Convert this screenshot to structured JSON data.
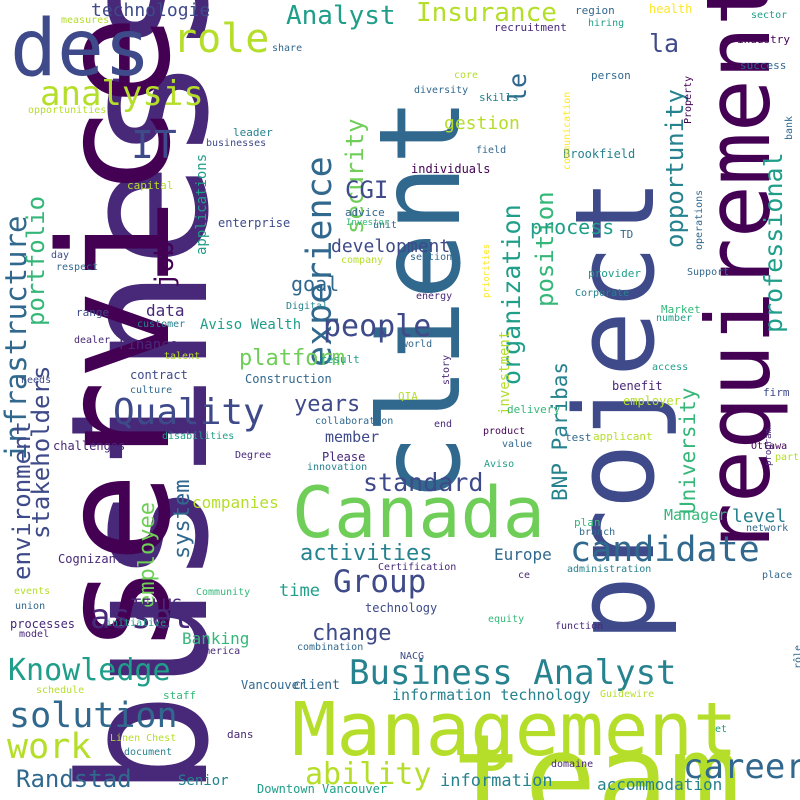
{
  "palette": {
    "c0": "#440154",
    "c1": "#482878",
    "c2": "#3e4a89",
    "c3": "#31688e",
    "c4": "#26828e",
    "c5": "#1f9e89",
    "c6": "#35b779",
    "c7": "#6ece58",
    "c8": "#b5de2b",
    "c9": "#fde725"
  },
  "words": [
    {
      "text": "business",
      "color": "c1"
    },
    {
      "text": "service",
      "color": "c0"
    },
    {
      "text": "team",
      "color": "c8"
    },
    {
      "text": "client",
      "color": "c3"
    },
    {
      "text": "project",
      "color": "c2"
    },
    {
      "text": "requirement",
      "color": "c0"
    },
    {
      "text": "des",
      "color": "c2"
    },
    {
      "text": "Management",
      "color": "c8"
    },
    {
      "text": "Canada",
      "color": "c7"
    },
    {
      "text": "experience",
      "color": "c3"
    },
    {
      "text": "infrastructure",
      "color": "c3"
    },
    {
      "text": "role",
      "color": "c8"
    },
    {
      "text": "analysis",
      "color": "c8"
    },
    {
      "text": "IT",
      "color": "c2"
    },
    {
      "text": "Quality",
      "color": "c2"
    },
    {
      "text": "candidate",
      "color": "c3"
    },
    {
      "text": "Business Analyst",
      "color": "c4"
    },
    {
      "text": "solution",
      "color": "c3"
    },
    {
      "text": "work",
      "color": "c8"
    },
    {
      "text": "people",
      "color": "c2"
    },
    {
      "text": "Group",
      "color": "c2"
    },
    {
      "text": "asset",
      "color": "c1"
    },
    {
      "text": "career",
      "color": "c3"
    },
    {
      "text": "Knowledge",
      "color": "c5"
    },
    {
      "text": "ability",
      "color": "c8"
    },
    {
      "text": "Randstad",
      "color": "c3"
    },
    {
      "text": "professional",
      "color": "c5"
    },
    {
      "text": "organization",
      "color": "c5"
    },
    {
      "text": "position",
      "color": "c6"
    },
    {
      "text": "security",
      "color": "c7"
    },
    {
      "text": "portfolio",
      "color": "c6"
    },
    {
      "text": "stakeholders",
      "color": "c2"
    },
    {
      "text": "environment",
      "color": "c2"
    },
    {
      "text": "Analyst",
      "color": "c5"
    },
    {
      "text": "Insurance",
      "color": "c8"
    },
    {
      "text": "la",
      "color": "c2"
    },
    {
      "text": "le",
      "color": "c3"
    },
    {
      "text": "opportunity",
      "color": "c4"
    },
    {
      "text": "University",
      "color": "c6"
    },
    {
      "text": "employee",
      "color": "c7"
    },
    {
      "text": "system",
      "color": "c3"
    },
    {
      "text": "standard",
      "color": "c2"
    },
    {
      "text": "activities",
      "color": "c4"
    },
    {
      "text": "change",
      "color": "c2"
    },
    {
      "text": "platform",
      "color": "c7"
    },
    {
      "text": "years",
      "color": "c2"
    },
    {
      "text": "BNP Paribas",
      "color": "c4"
    },
    {
      "text": "job",
      "color": "c0"
    },
    {
      "text": "CGI",
      "color": "c2"
    },
    {
      "text": "development",
      "color": "c2"
    },
    {
      "text": "goal",
      "color": "c3"
    },
    {
      "text": "process",
      "color": "c5"
    },
    {
      "text": "gestion",
      "color": "c8"
    },
    {
      "text": "technologie",
      "color": "c2"
    },
    {
      "text": "level",
      "color": "c4"
    },
    {
      "text": "Manager",
      "color": "c6"
    },
    {
      "text": "information technology",
      "color": "c4"
    },
    {
      "text": "information",
      "color": "c4"
    },
    {
      "text": "accommodation",
      "color": "c4"
    },
    {
      "text": "Europe",
      "color": "c3"
    },
    {
      "text": "TELUS",
      "color": "c1"
    },
    {
      "text": "time",
      "color": "c5"
    },
    {
      "text": "Banking",
      "color": "c6"
    },
    {
      "text": "companies",
      "color": "c8"
    },
    {
      "text": "data",
      "color": "c1"
    },
    {
      "text": "member",
      "color": "c2"
    },
    {
      "text": "Senior",
      "color": "c4"
    },
    {
      "text": "applications",
      "color": "c5"
    },
    {
      "text": "investment",
      "color": "c8"
    },
    {
      "text": "Aviso Wealth",
      "color": "c5"
    },
    {
      "text": "Finance",
      "color": "c1"
    },
    {
      "text": "Construction",
      "color": "c3"
    },
    {
      "text": "Please",
      "color": "c1"
    },
    {
      "text": "Vancouver",
      "color": "c3"
    },
    {
      "text": "client",
      "color": "c3"
    },
    {
      "text": "Downtown Vancouver",
      "color": "c5"
    },
    {
      "text": "Cognizant",
      "color": "c1"
    },
    {
      "text": "challenges",
      "color": "c1"
    },
    {
      "text": "contract",
      "color": "c2"
    },
    {
      "text": "range",
      "color": "c2"
    },
    {
      "text": "enterprise",
      "color": "c2"
    },
    {
      "text": "capital",
      "color": "c8"
    },
    {
      "text": "businesses",
      "color": "c2"
    },
    {
      "text": "leader",
      "color": "c4"
    },
    {
      "text": "result",
      "color": "c5"
    },
    {
      "text": "Digital",
      "color": "c4"
    },
    {
      "text": "individuals",
      "color": "c0"
    },
    {
      "text": "Brookfield",
      "color": "c4"
    },
    {
      "text": "communication",
      "color": "c9"
    },
    {
      "text": "field",
      "color": "c3"
    },
    {
      "text": "diversity",
      "color": "c3"
    },
    {
      "text": "core",
      "color": "c8"
    },
    {
      "text": "skills",
      "color": "c4"
    },
    {
      "text": "recruitment",
      "color": "c1"
    },
    {
      "text": "hiring",
      "color": "c5"
    },
    {
      "text": "region",
      "color": "c3"
    },
    {
      "text": "health",
      "color": "c9"
    },
    {
      "text": "sector",
      "color": "c5"
    },
    {
      "text": "industry",
      "color": "c0"
    },
    {
      "text": "success",
      "color": "c3"
    },
    {
      "text": "person",
      "color": "c3"
    },
    {
      "text": "Property",
      "color": "c0"
    },
    {
      "text": "bank",
      "color": "c3"
    },
    {
      "text": "operations",
      "color": "c3"
    },
    {
      "text": "Support",
      "color": "c3"
    },
    {
      "text": "provider",
      "color": "c5"
    },
    {
      "text": "Corporate",
      "color": "c4"
    },
    {
      "text": "TD",
      "color": "c3"
    },
    {
      "text": "Market",
      "color": "c6"
    },
    {
      "text": "number",
      "color": "c5"
    },
    {
      "text": "priorities",
      "color": "c9"
    },
    {
      "text": "energy",
      "color": "c1"
    },
    {
      "text": "company",
      "color": "c8"
    },
    {
      "text": "section",
      "color": "c3"
    },
    {
      "text": "unit",
      "color": "c3"
    },
    {
      "text": "advice",
      "color": "c3"
    },
    {
      "text": "Investor",
      "color": "c6"
    },
    {
      "text": "measures",
      "color": "c8"
    },
    {
      "text": "share",
      "color": "c3"
    },
    {
      "text": "opportunities",
      "color": "c8"
    },
    {
      "text": "day",
      "color": "c2"
    },
    {
      "text": "respect",
      "color": "c3"
    },
    {
      "text": "customer",
      "color": "c4"
    },
    {
      "text": "dealer",
      "color": "c1"
    },
    {
      "text": "needs",
      "color": "c2"
    },
    {
      "text": "talent",
      "color": "c8"
    },
    {
      "text": "culture",
      "color": "c3"
    },
    {
      "text": "disabilities",
      "color": "c5"
    },
    {
      "text": "world",
      "color": "c3"
    },
    {
      "text": "QIA",
      "color": "c8"
    },
    {
      "text": "story",
      "color": "c1"
    },
    {
      "text": "end",
      "color": "c1"
    },
    {
      "text": "collaboration",
      "color": "c3"
    },
    {
      "text": "delivery",
      "color": "c6"
    },
    {
      "text": "benefit",
      "color": "c1"
    },
    {
      "text": "employer",
      "color": "c8"
    },
    {
      "text": "access",
      "color": "c5"
    },
    {
      "text": "firm",
      "color": "c2"
    },
    {
      "text": "program",
      "color": "c1"
    },
    {
      "text": "part",
      "color": "c8"
    },
    {
      "text": "applicant",
      "color": "c8"
    },
    {
      "text": "test",
      "color": "c3"
    },
    {
      "text": "product",
      "color": "c0"
    },
    {
      "text": "value",
      "color": "c3"
    },
    {
      "text": "Aviso",
      "color": "c5"
    },
    {
      "text": "innovation",
      "color": "c4"
    },
    {
      "text": "Ottawa",
      "color": "c0"
    },
    {
      "text": "Degree",
      "color": "c1"
    },
    {
      "text": "network",
      "color": "c3"
    },
    {
      "text": "plan",
      "color": "c6"
    },
    {
      "text": "branch",
      "color": "c3"
    },
    {
      "text": "Certification",
      "color": "c1"
    },
    {
      "text": "administration",
      "color": "c4"
    },
    {
      "text": "place",
      "color": "c3"
    },
    {
      "text": "ce",
      "color": "c1"
    },
    {
      "text": "events",
      "color": "c8"
    },
    {
      "text": "union",
      "color": "c3"
    },
    {
      "text": "Community",
      "color": "c6"
    },
    {
      "text": "technology",
      "color": "c2"
    },
    {
      "text": "function",
      "color": "c1"
    },
    {
      "text": "equity",
      "color": "c6"
    },
    {
      "text": "processes",
      "color": "c1"
    },
    {
      "text": "model",
      "color": "c1"
    },
    {
      "text": "initiative",
      "color": "c5"
    },
    {
      "text": "America",
      "color": "c1"
    },
    {
      "text": "combination",
      "color": "c3"
    },
    {
      "text": "NACG",
      "color": "c2"
    },
    {
      "text": "rôle",
      "color": "c3"
    },
    {
      "text": "schedule",
      "color": "c8"
    },
    {
      "text": "staff",
      "color": "c6"
    },
    {
      "text": "Guidewire",
      "color": "c8"
    },
    {
      "text": "dans",
      "color": "c1"
    },
    {
      "text": "et",
      "color": "c5"
    },
    {
      "text": "Linen Chest",
      "color": "c8"
    },
    {
      "text": "document",
      "color": "c4"
    },
    {
      "text": "domaine",
      "color": "c1"
    }
  ]
}
